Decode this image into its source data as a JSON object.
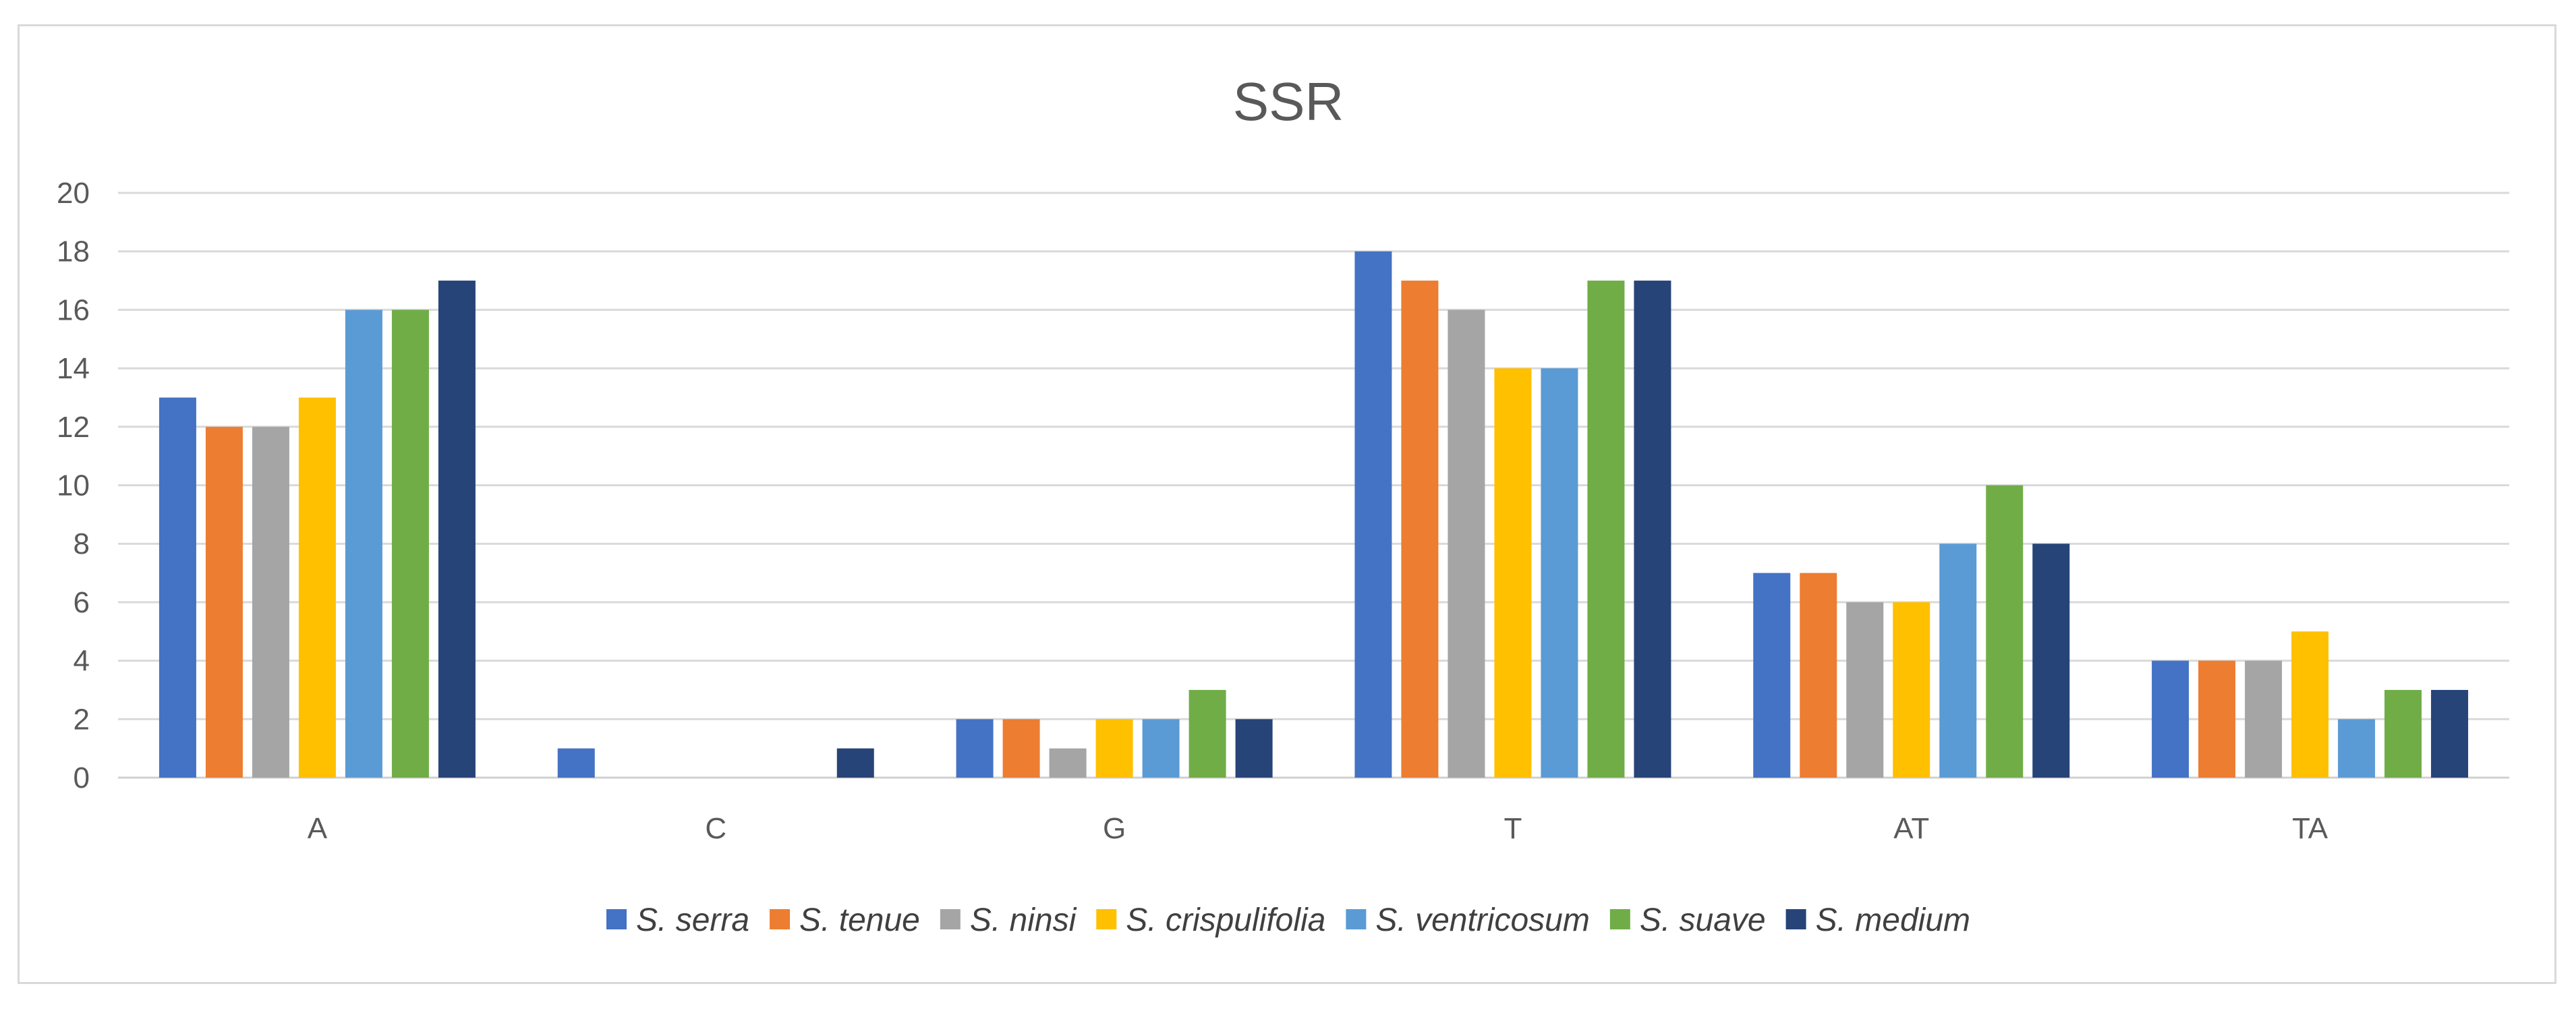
{
  "chart_data": {
    "type": "bar",
    "title": "SSR",
    "xlabel": "",
    "ylabel": "",
    "categories": [
      "A",
      "C",
      "G",
      "T",
      "AT",
      "TA"
    ],
    "yticks": [
      "0",
      "2",
      "4",
      "6",
      "8",
      "10",
      "12",
      "14",
      "16",
      "18",
      "20"
    ],
    "ylim": [
      0,
      20
    ],
    "grid": true,
    "legend_position": "bottom",
    "series": [
      {
        "name": "S. serra",
        "color": "#4472C4",
        "values": [
          13,
          1,
          2,
          18,
          7,
          4
        ]
      },
      {
        "name": "S. tenue",
        "color": "#ED7D31",
        "values": [
          12,
          0,
          2,
          17,
          7,
          4
        ]
      },
      {
        "name": "S. ninsi",
        "color": "#A5A5A5",
        "values": [
          12,
          0,
          1,
          16,
          6,
          4
        ]
      },
      {
        "name": "S. crispulifolia",
        "color": "#FFC000",
        "values": [
          13,
          0,
          2,
          14,
          6,
          5
        ]
      },
      {
        "name": "S. ventricosum",
        "color": "#5B9BD5",
        "values": [
          16,
          0,
          2,
          14,
          8,
          2
        ]
      },
      {
        "name": "S. suave",
        "color": "#70AD47",
        "values": [
          16,
          0,
          3,
          17,
          10,
          3
        ]
      },
      {
        "name": "S. medium",
        "color": "#264478",
        "values": [
          17,
          1,
          2,
          17,
          8,
          3
        ]
      }
    ]
  }
}
